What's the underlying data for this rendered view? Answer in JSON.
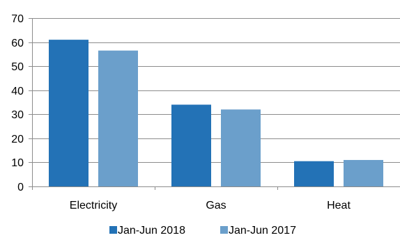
{
  "chart_data": {
    "type": "bar",
    "categories": [
      "Electricity",
      "Gas",
      "Heat"
    ],
    "series": [
      {
        "name": "Jan-Jun 2018",
        "color": "#2372B6",
        "values": [
          61,
          34,
          10.5
        ]
      },
      {
        "name": "Jan-Jun 2017",
        "color": "#6B9FCB",
        "values": [
          56.5,
          32,
          11
        ]
      }
    ],
    "ylim": [
      0,
      70
    ],
    "yticks": [
      0,
      10,
      20,
      30,
      40,
      50,
      60,
      70
    ],
    "grid": true,
    "legend_position": "bottom",
    "title": "",
    "xlabel": "",
    "ylabel": ""
  }
}
